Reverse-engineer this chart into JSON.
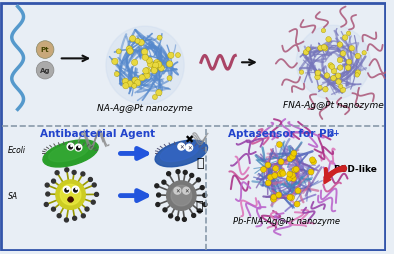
{
  "bg_color": "#e8eef5",
  "border_color": "#4466aa",
  "dashed_color": "#8899aa",
  "text": {
    "na_ag_pt": "NA-Ag@Pt nanozyme",
    "fna_ag_pt": "FNA-Ag@Pt nanozyme",
    "antibacterial": "Antibacterial Agent",
    "aptasensor": "Aptasensor for Pb",
    "pb_super": "2+",
    "ecoli": "Ecoli",
    "sa": "SA",
    "pod_like": "POD-like",
    "pb_fna": "Pb-FNA-Ag@Pt nanozyme"
  },
  "colors": {
    "antibacterial_text": "#2244cc",
    "aptasensor_text": "#2244cc",
    "na_fiber": "#5588cc",
    "na_dot": "#e8d840",
    "fna_fiber": "#7777bb",
    "fna_tentacle": "#aa5577",
    "fna_dot": "#e8d840",
    "pb_fiber": "#aa6699",
    "pb_dot": "#e8d840",
    "pb_tentacle": "#cc77aa",
    "dna_wavy_left": "#5599cc",
    "dna_wavy_mid": "#aa4466",
    "pt_color": "#c8a87a",
    "ag_color": "#aaaaaa",
    "arrow_black": "#111111",
    "arrow_blue": "#2255dd",
    "arrow_red": "#cc2222",
    "ecoli_green": "#2e9922",
    "ecoli_dead": "#3355aa",
    "sa_yellow": "#cccc20",
    "sa_dead": "#777777",
    "skull": "#222222",
    "border": "#3355aa"
  }
}
